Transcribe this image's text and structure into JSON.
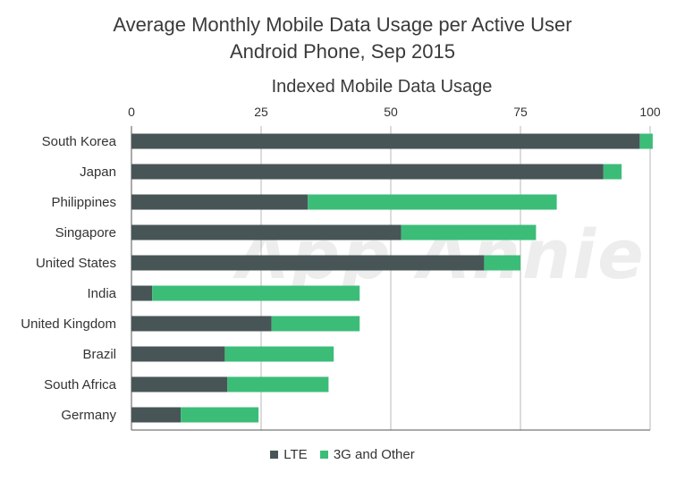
{
  "chart_data": {
    "type": "bar",
    "orientation": "horizontal",
    "stacked": true,
    "title": "Average Monthly Mobile Data Usage per Active User",
    "subtitle": "Android Phone, Sep 2015",
    "xlabel": "Indexed Mobile Data Usage",
    "xlim": [
      0,
      100
    ],
    "xticks": [
      0,
      25,
      50,
      75,
      100
    ],
    "grid": true,
    "legend_position": "bottom",
    "watermark": "App Annie",
    "categories": [
      "South Korea",
      "Japan",
      "Philippines",
      "Singapore",
      "United States",
      "India",
      "United Kingdom",
      "Brazil",
      "South Africa",
      "Germany"
    ],
    "series": [
      {
        "name": "LTE",
        "color": "#485557",
        "values": [
          98,
          91,
          34,
          52,
          68,
          4,
          27,
          18,
          18.5,
          9.5
        ]
      },
      {
        "name": "3G and Other",
        "color": "#3bbd78",
        "values": [
          2.5,
          3.5,
          48,
          26,
          7,
          40,
          17,
          21,
          19.5,
          15
        ]
      }
    ]
  }
}
